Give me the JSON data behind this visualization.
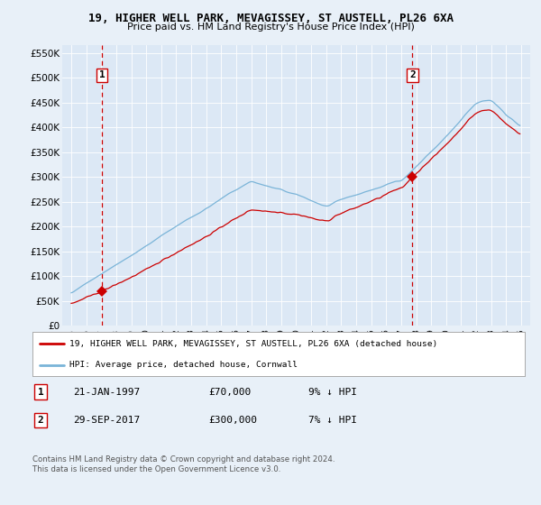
{
  "title": "19, HIGHER WELL PARK, MEVAGISSEY, ST AUSTELL, PL26 6XA",
  "subtitle": "Price paid vs. HM Land Registry's House Price Index (HPI)",
  "ylabel_ticks": [
    "£0",
    "£50K",
    "£100K",
    "£150K",
    "£200K",
    "£250K",
    "£300K",
    "£350K",
    "£400K",
    "£450K",
    "£500K",
    "£550K"
  ],
  "ytick_values": [
    0,
    50000,
    100000,
    150000,
    200000,
    250000,
    300000,
    350000,
    400000,
    450000,
    500000,
    550000
  ],
  "x_start_year": 1995,
  "x_end_year": 2025,
  "sale1_date": 1997.06,
  "sale1_price": 70000,
  "sale1_label": "1",
  "sale2_date": 2017.75,
  "sale2_price": 300000,
  "sale2_label": "2",
  "legend_line1": "19, HIGHER WELL PARK, MEVAGISSEY, ST AUSTELL, PL26 6XA (detached house)",
  "legend_line2": "HPI: Average price, detached house, Cornwall",
  "table_row1": [
    "1",
    "21-JAN-1997",
    "£70,000",
    "9% ↓ HPI"
  ],
  "table_row2": [
    "2",
    "29-SEP-2017",
    "£300,000",
    "7% ↓ HPI"
  ],
  "footnote": "Contains HM Land Registry data © Crown copyright and database right 2024.\nThis data is licensed under the Open Government Licence v3.0.",
  "hpi_color": "#7ab4d8",
  "price_color": "#cc0000",
  "dashed_line_color": "#cc0000",
  "bg_color": "#e8f0f8",
  "plot_bg": "#dce8f5"
}
